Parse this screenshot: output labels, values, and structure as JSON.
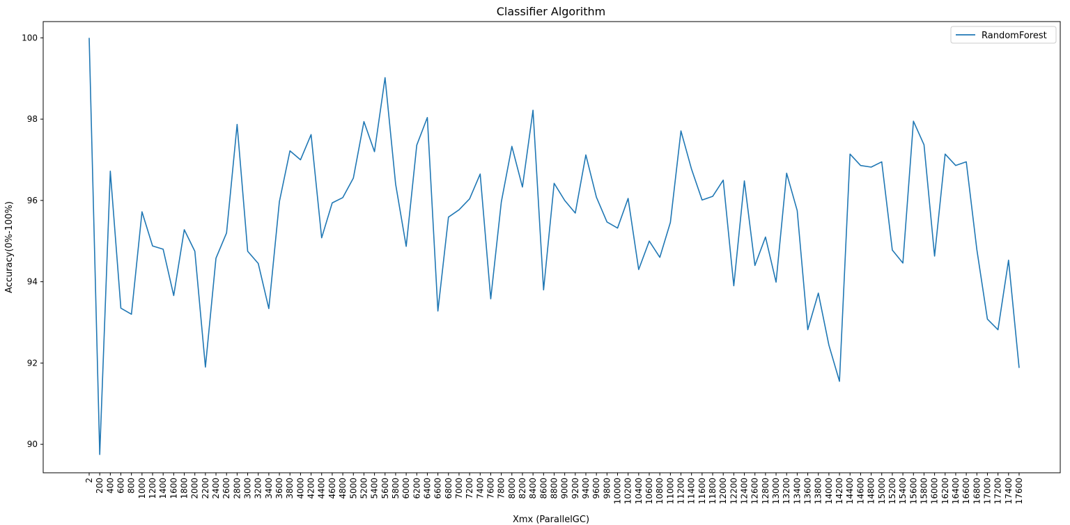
{
  "chart_data": {
    "type": "line",
    "title": "Classifier Algorithm",
    "xlabel": "Xmx (ParallelGC)",
    "ylabel": "Accuracy(0%-100%)",
    "ylim": [
      89.3,
      100.4
    ],
    "yticks": [
      90,
      92,
      94,
      96,
      98,
      100
    ],
    "grid": false,
    "legend_position": "top-right",
    "categories": [
      "2",
      "200",
      "400",
      "600",
      "800",
      "1000",
      "1200",
      "1400",
      "1600",
      "1800",
      "2000",
      "2200",
      "2400",
      "2600",
      "2800",
      "3000",
      "3200",
      "3400",
      "3600",
      "3800",
      "4000",
      "4200",
      "4400",
      "4600",
      "4800",
      "5000",
      "5200",
      "5400",
      "5600",
      "5800",
      "6000",
      "6200",
      "6400",
      "6600",
      "6800",
      "7000",
      "7200",
      "7400",
      "7600",
      "7800",
      "8000",
      "8200",
      "8400",
      "8600",
      "8800",
      "9000",
      "9200",
      "9400",
      "9600",
      "9800",
      "10000",
      "10200",
      "10400",
      "10600",
      "10800",
      "11000",
      "11200",
      "11400",
      "11600",
      "11800",
      "12000",
      "12200",
      "12400",
      "12600",
      "12800",
      "13000",
      "13200",
      "13400",
      "13600",
      "13800",
      "14000",
      "14200",
      "14400",
      "14600",
      "14800",
      "15000",
      "15200",
      "15400",
      "15600",
      "15800",
      "16000",
      "16200",
      "16400",
      "16600",
      "16800",
      "17000",
      "17200",
      "17400",
      "17600"
    ],
    "series": [
      {
        "name": "RandomForest",
        "color": "#1f77b4",
        "values": [
          100.0,
          89.75,
          96.72,
          93.35,
          93.2,
          95.72,
          94.88,
          94.8,
          93.66,
          95.28,
          94.75,
          91.9,
          94.58,
          95.2,
          97.87,
          94.75,
          94.45,
          93.34,
          95.97,
          97.22,
          97.0,
          97.62,
          95.08,
          95.94,
          96.07,
          96.55,
          97.94,
          97.2,
          99.02,
          96.4,
          94.87,
          97.36,
          98.04,
          93.28,
          95.59,
          95.77,
          96.04,
          96.65,
          93.58,
          95.96,
          97.33,
          96.33,
          98.22,
          93.8,
          96.42,
          96.0,
          95.69,
          97.12,
          96.08,
          95.47,
          95.32,
          96.05,
          94.3,
          95.0,
          94.6,
          95.46,
          97.71,
          96.77,
          96.01,
          96.1,
          96.5,
          93.9,
          96.48,
          94.4,
          95.1,
          93.99,
          96.67,
          95.75,
          92.82,
          93.72,
          92.44,
          91.55,
          97.14,
          96.86,
          96.82,
          96.95,
          94.78,
          94.46,
          97.95,
          97.37,
          94.63,
          97.14,
          96.86,
          96.95,
          94.79,
          93.08,
          92.82,
          94.53,
          91.88
        ]
      }
    ]
  }
}
